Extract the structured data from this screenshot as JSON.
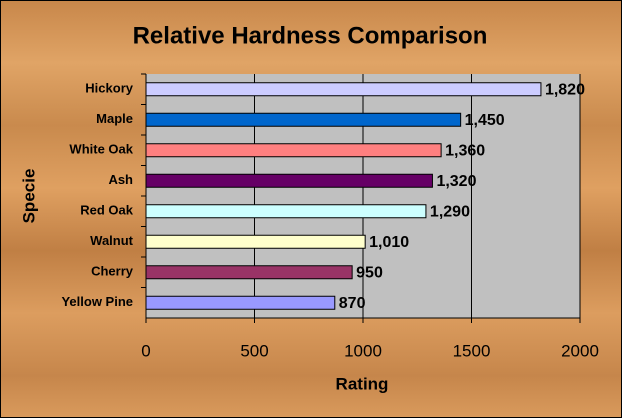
{
  "chart_data": {
    "type": "bar",
    "orientation": "horizontal",
    "title": "Relative Hardness Comparison",
    "x_label": "Rating",
    "y_label": "Specie",
    "categories": [
      "Hickory",
      "Maple",
      "White Oak",
      "Ash",
      "Red Oak",
      "Walnut",
      "Cherry",
      "Yellow Pine"
    ],
    "values": [
      1820,
      1450,
      1360,
      1320,
      1290,
      1010,
      950,
      870
    ],
    "value_labels": [
      "1,820",
      "1,450",
      "1,360",
      "1,320",
      "1,290",
      "1,010",
      "950",
      "870"
    ],
    "colors": [
      "#ccccff",
      "#0066cc",
      "#ff8080",
      "#660066",
      "#ccffff",
      "#ffffcc",
      "#993366",
      "#9999ff"
    ],
    "xlim": [
      0,
      2000
    ],
    "xticks": [
      0,
      500,
      1000,
      1500,
      2000
    ],
    "grid": true
  }
}
